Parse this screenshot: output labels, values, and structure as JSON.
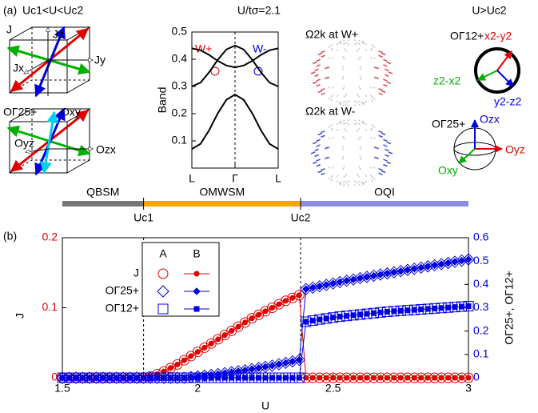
{
  "panel_a": {
    "label": "(a)",
    "left_title": "Uc1<U<Uc2",
    "center_title": "U/tσ=2.1",
    "right_title": "U>Uc2",
    "cube_top": [
      "J",
      "Jz",
      "Jx",
      "Jy"
    ],
    "cube_bottom": [
      "OΓ25+",
      "Oxy",
      "Oyz",
      "Ozx"
    ],
    "omega": [
      "Ω2k at W+",
      "Ω2k at W-"
    ],
    "circle_top": [
      "OΓ12+",
      "x2-y2",
      "z2-x2",
      "y2-z2"
    ],
    "sphere_bottom": [
      "OΓ25+",
      "Ozx",
      "Oyz",
      "Oxy"
    ]
  },
  "panel_b": {
    "label": "(b)"
  },
  "chart_data": [
    {
      "type": "line",
      "y_label": "Band",
      "x": [
        -1,
        -0.8,
        -0.6,
        -0.4,
        -0.2,
        0,
        0.2,
        0.4,
        0.6,
        0.8,
        1
      ],
      "xlim": [
        -1,
        1
      ],
      "xticks": [
        {
          "value": -1,
          "label": "L"
        },
        {
          "value": 0,
          "label": "Γ"
        },
        {
          "value": 1,
          "label": "L"
        }
      ],
      "ylim": [
        0,
        0.5
      ],
      "yticks": [
        0.1,
        0.2,
        0.3,
        0.4,
        0.5
      ],
      "annotations": [
        {
          "text": "W+",
          "color": "#e00000"
        },
        {
          "text": "W-",
          "color": "#0000e0"
        }
      ],
      "series": [
        {
          "color": "#000000",
          "values": [
            0.3,
            0.314,
            0.352,
            0.398,
            0.436,
            0.45,
            0.436,
            0.398,
            0.352,
            0.314,
            0.3
          ]
        },
        {
          "color": "#000000",
          "values": [
            0.44,
            0.433,
            0.416,
            0.394,
            0.377,
            0.37,
            0.377,
            0.394,
            0.416,
            0.433,
            0.44
          ]
        },
        {
          "color": "#000000",
          "values": [
            0.07,
            0.089,
            0.139,
            0.201,
            0.251,
            0.27,
            0.251,
            0.201,
            0.139,
            0.089,
            0.07
          ]
        }
      ]
    },
    {
      "type": "line",
      "x_label": "U",
      "y_label": "J",
      "y2_label": "OΓ25+, OΓ12+",
      "xlim": [
        1.5,
        3
      ],
      "xticks": [
        1.5,
        2,
        2.5,
        3
      ],
      "ylim": [
        0,
        0.2
      ],
      "yticks": [
        0,
        0.1,
        0.2
      ],
      "y_color": "#e00000",
      "y2lim": [
        0,
        0.6
      ],
      "y2ticks": [
        0,
        0.1,
        0.2,
        0.3,
        0.4,
        0.5,
        0.6
      ],
      "y2_color": "#0000e0",
      "vlines": [
        1.8,
        2.38
      ],
      "vline_labels": [
        "Uc1",
        "Uc2"
      ],
      "phases": [
        {
          "name": "QBSM",
          "from": 1.5,
          "to": 1.8,
          "color": "#777777"
        },
        {
          "name": "OMWSM",
          "from": 1.8,
          "to": 2.38,
          "color": "#ffa500"
        },
        {
          "name": "OQI",
          "from": 2.38,
          "to": 3,
          "color": "#8c8ce6"
        }
      ],
      "legend": {
        "columns": [
          "A",
          "B"
        ],
        "rows": [
          "J",
          "OΓ25+",
          "OΓ12+"
        ]
      },
      "x": [
        1.5,
        1.525,
        1.55,
        1.575,
        1.6,
        1.625,
        1.65,
        1.675,
        1.7,
        1.725,
        1.75,
        1.775,
        1.8,
        1.825,
        1.85,
        1.875,
        1.9,
        1.925,
        1.95,
        1.975,
        2,
        2.025,
        2.05,
        2.075,
        2.1,
        2.125,
        2.15,
        2.175,
        2.2,
        2.225,
        2.25,
        2.275,
        2.3,
        2.325,
        2.35,
        2.375,
        2.4,
        2.425,
        2.45,
        2.475,
        2.5,
        2.525,
        2.55,
        2.575,
        2.6,
        2.625,
        2.65,
        2.675,
        2.7,
        2.725,
        2.75,
        2.775,
        2.8,
        2.825,
        2.85,
        2.875,
        2.9,
        2.925,
        2.95,
        2.975,
        3
      ],
      "series": [
        {
          "color": "#e00000",
          "marker": "circle",
          "filled": false,
          "axis": "y",
          "values": [
            0,
            0,
            0,
            0,
            0,
            0,
            0,
            0,
            0,
            0,
            0,
            0,
            0,
            0.002,
            0.005,
            0.009,
            0.014,
            0.019,
            0.025,
            0.031,
            0.037,
            0.043,
            0.049,
            0.055,
            0.061,
            0.067,
            0.073,
            0.079,
            0.085,
            0.09,
            0.095,
            0.1,
            0.105,
            0.11,
            0.114,
            0.118,
            0,
            0,
            0,
            0,
            0,
            0,
            0,
            0,
            0,
            0,
            0,
            0,
            0,
            0,
            0,
            0,
            0,
            0,
            0,
            0,
            0,
            0,
            0,
            0,
            0
          ]
        },
        {
          "color": "#e00000",
          "marker": "circle",
          "filled": true,
          "axis": "y",
          "values": [
            0,
            0,
            0,
            0,
            0,
            0,
            0,
            0,
            0,
            0,
            0,
            0,
            0,
            0.002,
            0.005,
            0.009,
            0.014,
            0.019,
            0.025,
            0.031,
            0.037,
            0.043,
            0.049,
            0.055,
            0.061,
            0.067,
            0.073,
            0.079,
            0.085,
            0.09,
            0.095,
            0.1,
            0.105,
            0.11,
            0.114,
            0.118,
            0,
            0,
            0,
            0,
            0,
            0,
            0,
            0,
            0,
            0,
            0,
            0,
            0,
            0,
            0,
            0,
            0,
            0,
            0,
            0,
            0,
            0,
            0,
            0,
            0
          ]
        },
        {
          "color": "#0000e0",
          "marker": "diamond",
          "filled": false,
          "axis": "y2",
          "values": [
            0,
            0,
            0,
            0,
            0,
            0,
            0,
            0,
            0,
            0,
            0,
            0,
            0,
            0,
            0,
            0,
            0,
            0,
            0,
            0.003,
            0.006,
            0.009,
            0.012,
            0.016,
            0.02,
            0.024,
            0.028,
            0.032,
            0.037,
            0.042,
            0.047,
            0.052,
            0.058,
            0.064,
            0.07,
            0.077,
            0.38,
            0.386,
            0.392,
            0.398,
            0.404,
            0.41,
            0.416,
            0.421,
            0.427,
            0.432,
            0.437,
            0.442,
            0.447,
            0.452,
            0.457,
            0.462,
            0.467,
            0.472,
            0.477,
            0.482,
            0.487,
            0.492,
            0.497,
            0.502,
            0.507
          ]
        },
        {
          "color": "#0000e0",
          "marker": "diamond",
          "filled": true,
          "axis": "y2",
          "values": [
            0,
            0,
            0,
            0,
            0,
            0,
            0,
            0,
            0,
            0,
            0,
            0,
            0,
            0,
            0,
            0,
            0,
            0,
            0,
            0.003,
            0.006,
            0.009,
            0.012,
            0.016,
            0.02,
            0.024,
            0.028,
            0.032,
            0.037,
            0.042,
            0.047,
            0.052,
            0.058,
            0.064,
            0.07,
            0.077,
            0.38,
            0.386,
            0.392,
            0.398,
            0.404,
            0.41,
            0.416,
            0.421,
            0.427,
            0.432,
            0.437,
            0.442,
            0.447,
            0.452,
            0.457,
            0.462,
            0.467,
            0.472,
            0.477,
            0.482,
            0.487,
            0.492,
            0.497,
            0.502,
            0.507
          ]
        },
        {
          "color": "#0000e0",
          "marker": "square",
          "filled": false,
          "axis": "y2",
          "values": [
            0,
            0,
            0,
            0,
            0,
            0,
            0,
            0,
            0,
            0,
            0,
            0,
            0,
            0,
            0,
            0,
            0,
            0,
            0,
            0,
            0,
            0,
            0,
            0,
            0,
            0,
            0,
            0,
            0,
            0,
            0,
            0,
            0,
            0,
            0,
            0,
            0.24,
            0.245,
            0.25,
            0.254,
            0.258,
            0.262,
            0.265,
            0.268,
            0.271,
            0.274,
            0.277,
            0.28,
            0.283,
            0.285,
            0.287,
            0.289,
            0.291,
            0.293,
            0.295,
            0.297,
            0.299,
            0.301,
            0.303,
            0.305,
            0.307
          ]
        },
        {
          "color": "#0000e0",
          "marker": "square",
          "filled": true,
          "axis": "y2",
          "values": [
            0,
            0,
            0,
            0,
            0,
            0,
            0,
            0,
            0,
            0,
            0,
            0,
            0,
            0,
            0,
            0,
            0,
            0,
            0,
            0,
            0,
            0,
            0,
            0,
            0,
            0,
            0,
            0,
            0,
            0,
            0,
            0,
            0,
            0,
            0,
            0,
            0.24,
            0.245,
            0.25,
            0.254,
            0.258,
            0.262,
            0.265,
            0.268,
            0.271,
            0.274,
            0.277,
            0.28,
            0.283,
            0.285,
            0.287,
            0.289,
            0.291,
            0.293,
            0.295,
            0.297,
            0.299,
            0.301,
            0.303,
            0.305,
            0.307
          ]
        }
      ]
    }
  ]
}
